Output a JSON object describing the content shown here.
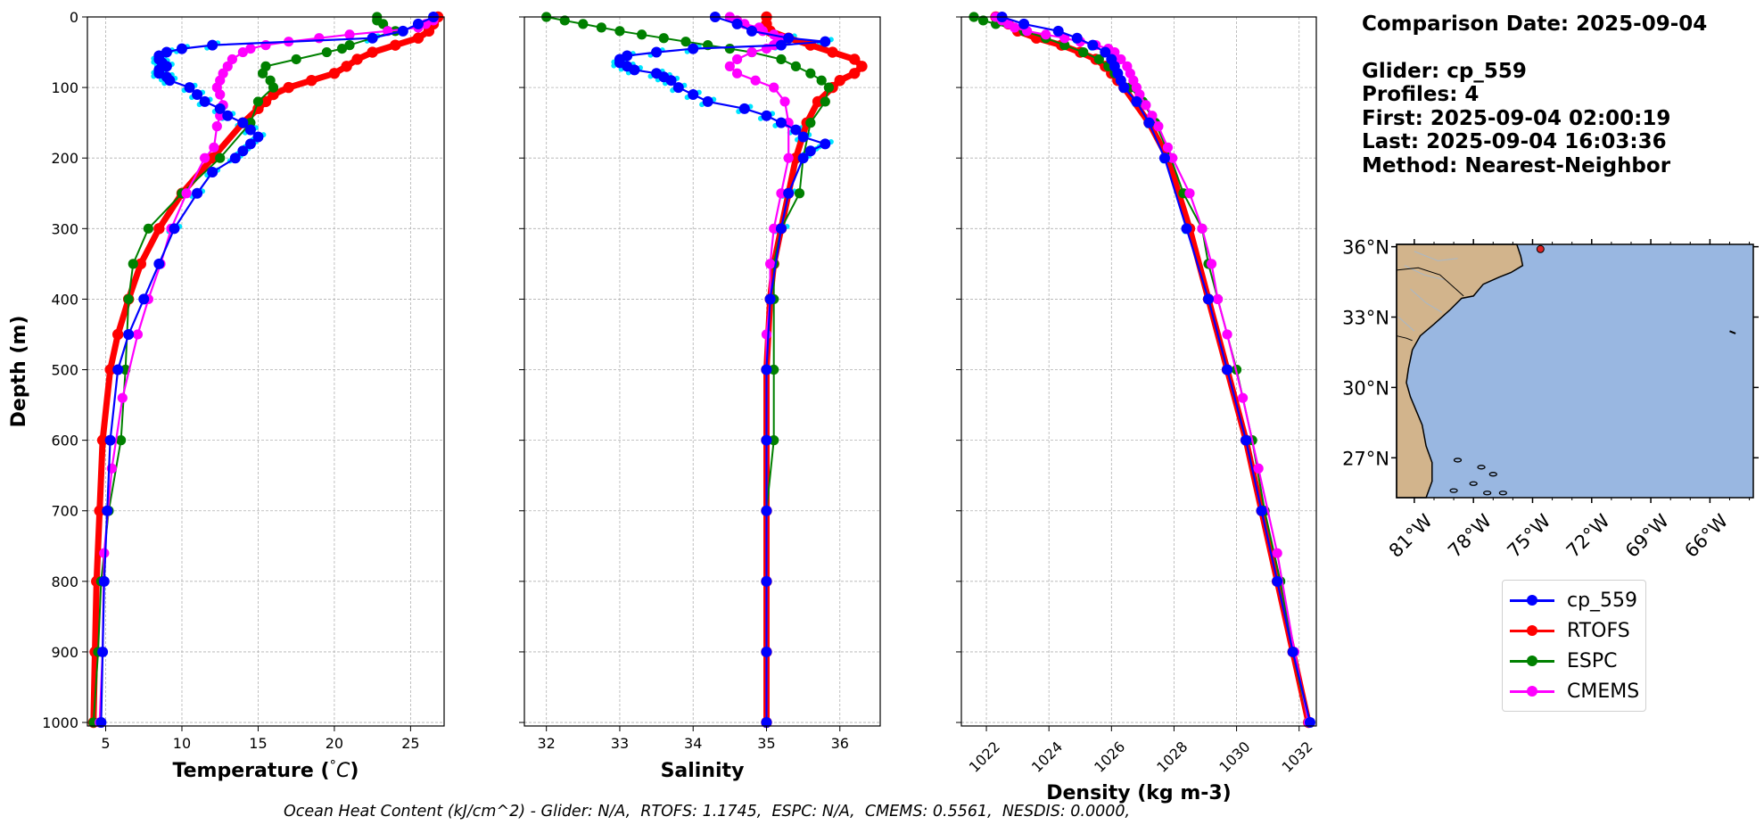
{
  "info": {
    "comparison_date": "Comparison Date: 2025-09-04",
    "glider": "Glider: cp_559",
    "profiles": "Profiles: 4",
    "first": "First: 2025-09-04 02:00:19",
    "last": "Last: 2025-09-04 16:03:36",
    "method": "Method: Nearest-Neighbor"
  },
  "footer": "Ocean Heat Content (kJ/cm^2) - Glider: N/A,  RTOFS: 1.1745,  ESPC: N/A,  CMEMS: 0.5561,  NESDIS: 0.0000,",
  "colors": {
    "cp_559": "#0000ff",
    "glider_raw": "#00e5ff",
    "RTOFS": "#ff0000",
    "ESPC": "#008000",
    "CMEMS": "#ff00ff",
    "land": "#d2b48c",
    "ocean": "#99b7e1"
  },
  "legend": [
    {
      "label": "cp_559",
      "color": "#0000ff"
    },
    {
      "label": "RTOFS",
      "color": "#ff0000"
    },
    {
      "label": "ESPC",
      "color": "#008000"
    },
    {
      "label": "CMEMS",
      "color": "#ff00ff"
    }
  ],
  "chart_data": [
    {
      "type": "line",
      "xlabel": "Temperature (°C)",
      "ylabel": "Depth (m)",
      "xlim": [
        3.8,
        27.2
      ],
      "ylim": [
        1005,
        0
      ],
      "y_inverted": true,
      "xticks": [
        5,
        10,
        15,
        20,
        25
      ],
      "yticks": [
        0,
        100,
        200,
        300,
        400,
        500,
        600,
        700,
        800,
        900,
        1000
      ],
      "grid": true,
      "series": [
        {
          "name": "cp_559",
          "depth": [
            0,
            10,
            20,
            30,
            40,
            45,
            50,
            55,
            60,
            65,
            70,
            75,
            80,
            85,
            90,
            100,
            110,
            120,
            130,
            140,
            150,
            160,
            170,
            180,
            190,
            200,
            220,
            250,
            300,
            350,
            400,
            450,
            500,
            600,
            700,
            800,
            900,
            1000
          ],
          "values": [
            26.5,
            25.5,
            24.5,
            22.5,
            12,
            10,
            9,
            8.5,
            8.5,
            8.7,
            9,
            8.5,
            8.5,
            9,
            9.2,
            10.5,
            11,
            11.5,
            12.5,
            13,
            14,
            14.5,
            15,
            14.5,
            14,
            13.5,
            12,
            11,
            9.5,
            8.5,
            7.5,
            6.5,
            5.8,
            5.3,
            5.1,
            4.9,
            4.8,
            4.7
          ]
        },
        {
          "name": "RTOFS",
          "depth": [
            0,
            10,
            20,
            30,
            40,
            50,
            60,
            70,
            80,
            90,
            100,
            110,
            120,
            130,
            150,
            200,
            250,
            300,
            350,
            400,
            450,
            500,
            600,
            700,
            800,
            900,
            1000
          ],
          "values": [
            26.8,
            26.5,
            26.2,
            25.5,
            24,
            22.5,
            21.5,
            20.8,
            20,
            18.5,
            17,
            16,
            15.5,
            15,
            14,
            12,
            10,
            8.5,
            7.3,
            6.5,
            5.8,
            5.3,
            4.8,
            4.6,
            4.4,
            4.3,
            4.2
          ]
        },
        {
          "name": "ESPC",
          "depth": [
            0,
            5,
            10,
            20,
            30,
            40,
            45,
            50,
            60,
            70,
            80,
            90,
            100,
            120,
            150,
            200,
            250,
            300,
            350,
            400,
            500,
            600,
            700,
            800,
            900,
            1000
          ],
          "values": [
            22.8,
            22.8,
            23.2,
            24,
            22.5,
            21,
            20.5,
            19.5,
            17.5,
            15.5,
            15.3,
            15.8,
            16,
            15,
            14.5,
            12.5,
            10,
            7.8,
            6.8,
            6.5,
            6.3,
            6,
            5.2,
            4.7,
            4.5,
            4.2
          ]
        },
        {
          "name": "CMEMS",
          "depth": [
            0,
            5,
            10,
            15,
            20,
            25,
            30,
            35,
            40,
            45,
            50,
            60,
            70,
            80,
            90,
            100,
            110,
            125,
            140,
            155,
            185,
            200,
            250,
            300,
            350,
            400,
            450,
            540,
            640,
            760,
            900,
            1000
          ],
          "values": [
            26.5,
            26.5,
            26,
            25.5,
            23.5,
            21,
            19,
            17,
            15.5,
            14.5,
            14,
            13.3,
            13,
            12.7,
            12.5,
            12.3,
            12.5,
            12.7,
            12.5,
            12.3,
            12.1,
            11.5,
            10.3,
            9.3,
            8.6,
            7.8,
            7.1,
            6.1,
            5.4,
            4.9,
            4.8,
            4.6
          ]
        }
      ]
    },
    {
      "type": "line",
      "xlabel": "Salinity",
      "xlim": [
        31.7,
        36.55
      ],
      "ylim": [
        1005,
        0
      ],
      "y_inverted": true,
      "xticks": [
        32,
        33,
        34,
        35,
        36
      ],
      "grid": true,
      "series": [
        {
          "name": "cp_559",
          "depth": [
            0,
            10,
            20,
            30,
            35,
            40,
            45,
            50,
            55,
            60,
            65,
            70,
            75,
            80,
            85,
            90,
            100,
            110,
            120,
            130,
            140,
            150,
            160,
            170,
            180,
            190,
            200,
            250,
            300,
            400,
            500,
            600,
            700,
            800,
            900,
            1000
          ],
          "values": [
            34.3,
            34.6,
            34.8,
            35.3,
            35.8,
            35.2,
            34,
            33.5,
            33.1,
            33,
            33,
            33.1,
            33.2,
            33.5,
            33.6,
            33.7,
            33.8,
            34,
            34.2,
            34.7,
            35,
            35.2,
            35.4,
            35.5,
            35.8,
            35.6,
            35.5,
            35.3,
            35.2,
            35.05,
            35.0,
            35.0,
            35.0,
            35.0,
            35.0,
            35.0
          ]
        },
        {
          "name": "RTOFS",
          "depth": [
            0,
            10,
            20,
            30,
            40,
            50,
            60,
            70,
            80,
            90,
            100,
            120,
            150,
            200,
            250,
            300,
            350,
            400,
            500,
            600,
            700,
            800,
            900,
            1000
          ],
          "values": [
            35,
            35,
            35.05,
            35.3,
            35.6,
            35.9,
            36.2,
            36.3,
            36.2,
            36.0,
            35.9,
            35.7,
            35.55,
            35.4,
            35.3,
            35.2,
            35.1,
            35.05,
            35.0,
            35.0,
            35.0,
            35.0,
            35.0,
            35.0
          ]
        },
        {
          "name": "ESPC",
          "depth": [
            0,
            5,
            10,
            15,
            20,
            25,
            30,
            35,
            40,
            45,
            50,
            60,
            70,
            80,
            90,
            100,
            120,
            150,
            200,
            250,
            300,
            350,
            400,
            500,
            600,
            700,
            800,
            900,
            1000
          ],
          "values": [
            32.0,
            32.25,
            32.5,
            32.75,
            33.0,
            33.3,
            33.6,
            33.9,
            34.2,
            34.5,
            34.8,
            35.2,
            35.4,
            35.6,
            35.75,
            35.85,
            35.8,
            35.6,
            35.5,
            35.45,
            35.2,
            35.1,
            35.1,
            35.1,
            35.1,
            35.0,
            35.0,
            35.0,
            35.0
          ]
        },
        {
          "name": "CMEMS",
          "depth": [
            0,
            5,
            10,
            15,
            20,
            25,
            30,
            35,
            40,
            45,
            50,
            60,
            70,
            80,
            90,
            100,
            120,
            150,
            200,
            250,
            300,
            350,
            400,
            450,
            500,
            600,
            700,
            800,
            900,
            1000
          ],
          "values": [
            34.5,
            34.6,
            34.7,
            34.9,
            34.95,
            35.1,
            35.2,
            35.15,
            35.1,
            35.0,
            34.8,
            34.6,
            34.5,
            34.6,
            34.85,
            35.1,
            35.25,
            35.3,
            35.3,
            35.2,
            35.1,
            35.05,
            35.05,
            35.0,
            35.0,
            35.0,
            35.0,
            35.0,
            35.0,
            35.0
          ]
        }
      ]
    },
    {
      "type": "line",
      "xlabel": "Density (kg m-3)",
      "xlim": [
        1021.2,
        1032.55
      ],
      "ylim": [
        1005,
        0
      ],
      "y_inverted": true,
      "xticks": [
        1022,
        1024,
        1026,
        1028,
        1030,
        1032
      ],
      "grid": true,
      "series": [
        {
          "name": "cp_559",
          "depth": [
            0,
            10,
            20,
            30,
            40,
            50,
            60,
            70,
            80,
            90,
            100,
            120,
            150,
            200,
            300,
            400,
            500,
            600,
            700,
            800,
            900,
            1000
          ],
          "values": [
            1022.5,
            1023.2,
            1024.3,
            1024.9,
            1025.4,
            1025.8,
            1026.0,
            1026.1,
            1026.2,
            1026.3,
            1026.4,
            1026.8,
            1027.2,
            1027.7,
            1028.4,
            1029.1,
            1029.7,
            1030.3,
            1030.8,
            1031.3,
            1031.8,
            1032.35
          ]
        },
        {
          "name": "RTOFS",
          "depth": [
            0,
            10,
            20,
            30,
            40,
            50,
            60,
            70,
            80,
            90,
            100,
            150,
            200,
            300,
            400,
            500,
            600,
            700,
            800,
            900,
            1000
          ],
          "values": [
            1022.3,
            1022.7,
            1023.0,
            1023.6,
            1024.4,
            1025.0,
            1025.5,
            1025.8,
            1026.0,
            1026.2,
            1026.4,
            1027.2,
            1027.8,
            1028.5,
            1029.1,
            1029.7,
            1030.3,
            1030.8,
            1031.3,
            1031.8,
            1032.3
          ]
        },
        {
          "name": "ESPC",
          "depth": [
            0,
            5,
            10,
            20,
            30,
            40,
            50,
            60,
            70,
            80,
            100,
            120,
            150,
            200,
            250,
            300,
            350,
            400,
            500,
            600,
            700,
            800,
            900,
            1000
          ],
          "values": [
            1021.6,
            1021.9,
            1022.3,
            1023.2,
            1023.9,
            1024.5,
            1025.1,
            1025.6,
            1025.9,
            1026.1,
            1026.6,
            1027.0,
            1027.4,
            1027.9,
            1028.3,
            1028.9,
            1029.1,
            1029.4,
            1030.0,
            1030.5,
            1030.9,
            1031.4,
            1031.8,
            1032.3
          ]
        },
        {
          "name": "CMEMS",
          "depth": [
            0,
            5,
            10,
            15,
            20,
            25,
            30,
            35,
            40,
            45,
            50,
            60,
            70,
            80,
            90,
            100,
            110,
            125,
            140,
            155,
            185,
            200,
            250,
            300,
            350,
            400,
            450,
            540,
            640,
            760,
            900,
            1000
          ],
          "values": [
            1022.3,
            1022.5,
            1022.7,
            1022.9,
            1023.3,
            1023.9,
            1024.5,
            1025.0,
            1025.5,
            1025.9,
            1026.1,
            1026.3,
            1026.5,
            1026.6,
            1026.7,
            1026.8,
            1026.9,
            1027.1,
            1027.3,
            1027.5,
            1027.8,
            1027.95,
            1028.5,
            1028.9,
            1029.2,
            1029.4,
            1029.7,
            1030.2,
            1030.7,
            1031.3,
            1031.85,
            1032.3
          ]
        }
      ]
    }
  ],
  "map": {
    "lat_ticks": [
      "36°N",
      "33°N",
      "30°N",
      "27°N"
    ],
    "lon_ticks": [
      "81°W",
      "78°W",
      "75°W",
      "72°W",
      "69°W",
      "66°W"
    ],
    "glider_position": {
      "lon": -74.6,
      "lat": 35.9
    }
  }
}
